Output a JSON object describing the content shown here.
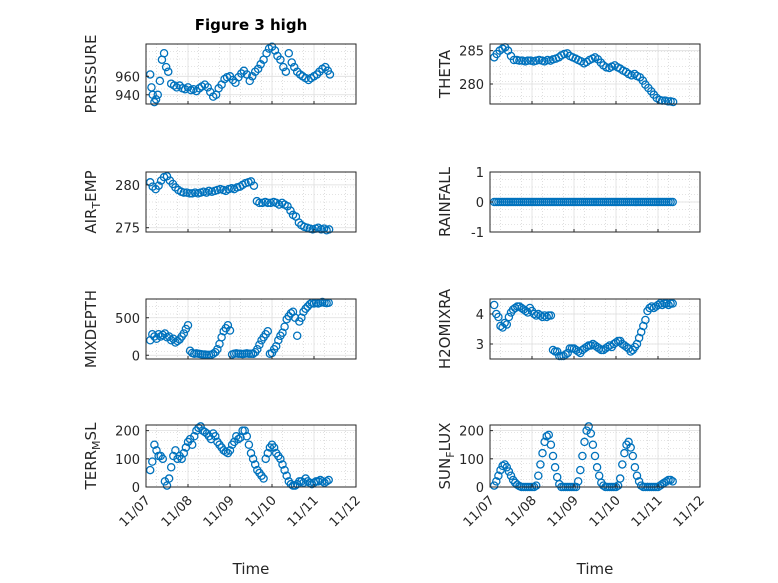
{
  "figure": {
    "title": "Figure 3 high",
    "xlabel": "Time",
    "xticks": [
      "11/07",
      "11/08",
      "11/09",
      "11/10",
      "11/11",
      "11/12"
    ],
    "marker_color": "#0072BD"
  },
  "chart_data": [
    {
      "type": "scatter",
      "ylabel": "PRESSURE",
      "ylabel_sub": "",
      "ylim": [
        930,
        995
      ],
      "yticks": [
        940,
        960
      ],
      "xlim": [
        0,
        5
      ],
      "x": [
        0.1,
        0.13,
        0.16,
        0.2,
        0.24,
        0.28,
        0.33,
        0.38,
        0.43,
        0.48,
        0.53,
        0.6,
        0.67,
        0.73,
        0.8,
        0.87,
        0.93,
        1.0,
        1.07,
        1.13,
        1.2,
        1.27,
        1.33,
        1.4,
        1.47,
        1.53,
        1.6,
        1.67,
        1.73,
        1.8,
        1.87,
        1.93,
        2.0,
        2.07,
        2.13,
        2.2,
        2.27,
        2.33,
        2.4,
        2.47,
        2.53,
        2.6,
        2.67,
        2.73,
        2.8,
        2.87,
        2.93,
        3.0,
        3.07,
        3.13,
        3.2,
        3.27,
        3.33,
        3.4,
        3.47,
        3.53,
        3.6,
        3.67,
        3.73,
        3.8,
        3.87,
        3.93,
        4.0,
        4.07,
        4.13,
        4.2,
        4.27,
        4.33,
        4.38
      ],
      "y": [
        962,
        948,
        940,
        932,
        935,
        940,
        955,
        978,
        985,
        970,
        965,
        952,
        950,
        948,
        950,
        947,
        946,
        948,
        945,
        946,
        944,
        947,
        949,
        951,
        948,
        943,
        938,
        940,
        947,
        951,
        957,
        959,
        960,
        956,
        953,
        959,
        963,
        966,
        962,
        955,
        960,
        965,
        968,
        973,
        978,
        985,
        990,
        992,
        988,
        982,
        978,
        970,
        965,
        985,
        975,
        970,
        965,
        962,
        960,
        958,
        956,
        958,
        960,
        962,
        965,
        968,
        970,
        966,
        962
      ]
    },
    {
      "type": "scatter",
      "ylabel": "THETA",
      "ylabel_sub": "",
      "ylim": [
        277,
        286
      ],
      "yticks": [
        280,
        285
      ],
      "xlim": [
        0,
        5
      ],
      "x": [
        0.1,
        0.16,
        0.23,
        0.3,
        0.36,
        0.43,
        0.5,
        0.57,
        0.64,
        0.7,
        0.77,
        0.84,
        0.9,
        0.97,
        1.04,
        1.1,
        1.17,
        1.24,
        1.3,
        1.37,
        1.44,
        1.5,
        1.57,
        1.64,
        1.7,
        1.77,
        1.84,
        1.9,
        1.97,
        2.04,
        2.1,
        2.17,
        2.24,
        2.3,
        2.37,
        2.44,
        2.5,
        2.57,
        2.64,
        2.7,
        2.77,
        2.84,
        2.9,
        2.97,
        3.04,
        3.1,
        3.17,
        3.24,
        3.3,
        3.37,
        3.44,
        3.5,
        3.57,
        3.64,
        3.7,
        3.77,
        3.84,
        3.9,
        3.97,
        4.04,
        4.1,
        4.17,
        4.24,
        4.3,
        4.36
      ],
      "y": [
        284.0,
        284.5,
        285.0,
        285.3,
        285.5,
        285.0,
        284.2,
        283.6,
        283.6,
        283.5,
        283.5,
        283.4,
        283.5,
        283.5,
        283.4,
        283.5,
        283.6,
        283.5,
        283.4,
        283.6,
        283.5,
        283.7,
        283.8,
        284.0,
        284.3,
        284.5,
        284.6,
        284.2,
        284.0,
        283.8,
        283.6,
        283.4,
        283.1,
        283.3,
        283.6,
        283.8,
        284.0,
        283.7,
        283.2,
        282.8,
        282.5,
        282.4,
        282.6,
        282.8,
        282.5,
        282.3,
        282.0,
        281.8,
        281.5,
        281.3,
        281.5,
        281.2,
        281.0,
        280.5,
        279.9,
        279.4,
        278.9,
        278.4,
        277.9,
        277.6,
        277.5,
        277.5,
        277.4,
        277.4,
        277.3
      ]
    },
    {
      "type": "scatter",
      "ylabel": "AIR",
      "ylabel_sub": "T",
      "ylabel_tail": "EMP",
      "ylim": [
        274.5,
        281.5
      ],
      "yticks": [
        275,
        280
      ],
      "xlim": [
        0,
        5
      ],
      "x": [
        0.1,
        0.16,
        0.23,
        0.3,
        0.36,
        0.43,
        0.5,
        0.57,
        0.64,
        0.7,
        0.77,
        0.84,
        0.9,
        0.97,
        1.04,
        1.1,
        1.17,
        1.24,
        1.3,
        1.37,
        1.44,
        1.5,
        1.57,
        1.64,
        1.7,
        1.77,
        1.84,
        1.9,
        1.97,
        2.04,
        2.1,
        2.17,
        2.24,
        2.3,
        2.37,
        2.44,
        2.5,
        2.57,
        2.64,
        2.7,
        2.77,
        2.84,
        2.9,
        2.97,
        3.04,
        3.1,
        3.17,
        3.24,
        3.3,
        3.37,
        3.44,
        3.5,
        3.57,
        3.64,
        3.7,
        3.77,
        3.84,
        3.9,
        3.97,
        4.04,
        4.1,
        4.17,
        4.24,
        4.3,
        4.36
      ],
      "y": [
        280.3,
        279.8,
        279.5,
        279.9,
        280.5,
        280.9,
        281.0,
        280.5,
        280.1,
        279.7,
        279.4,
        279.2,
        279.1,
        279.1,
        279.0,
        279.0,
        279.1,
        279.0,
        279.1,
        279.2,
        279.1,
        279.3,
        279.2,
        279.3,
        279.4,
        279.5,
        279.4,
        279.3,
        279.5,
        279.6,
        279.5,
        279.7,
        279.8,
        280.0,
        280.2,
        280.3,
        280.4,
        279.9,
        278.1,
        277.9,
        277.9,
        278.0,
        277.9,
        277.9,
        278.0,
        277.9,
        277.7,
        277.9,
        277.7,
        277.5,
        277.0,
        276.5,
        276.3,
        275.6,
        275.3,
        275.1,
        275.0,
        274.9,
        274.8,
        274.9,
        275.0,
        274.8,
        274.9,
        274.7,
        274.8
      ]
    },
    {
      "type": "scatter",
      "ylabel": "RAINFALL",
      "ylabel_sub": "",
      "ylim": [
        -1,
        1
      ],
      "yticks": [
        -1,
        0,
        1
      ],
      "xlim": [
        0,
        5
      ],
      "x": [
        0.1,
        0.15,
        0.2,
        0.25,
        0.3,
        0.35,
        0.4,
        0.45,
        0.5,
        0.55,
        0.6,
        0.65,
        0.7,
        0.75,
        0.8,
        0.85,
        0.9,
        0.95,
        1.0,
        1.05,
        1.1,
        1.15,
        1.2,
        1.25,
        1.3,
        1.35,
        1.4,
        1.45,
        1.5,
        1.55,
        1.6,
        1.65,
        1.7,
        1.75,
        1.8,
        1.85,
        1.9,
        1.95,
        2.0,
        2.05,
        2.1,
        2.15,
        2.2,
        2.25,
        2.3,
        2.35,
        2.4,
        2.45,
        2.5,
        2.55,
        2.6,
        2.65,
        2.7,
        2.75,
        2.8,
        2.85,
        2.9,
        2.95,
        3.0,
        3.05,
        3.1,
        3.15,
        3.2,
        3.25,
        3.3,
        3.35,
        3.4,
        3.45,
        3.5,
        3.55,
        3.6,
        3.65,
        3.7,
        3.75,
        3.8,
        3.85,
        3.9,
        3.95,
        4.0,
        4.05,
        4.1,
        4.15,
        4.2,
        4.25,
        4.3,
        4.35
      ],
      "y": [
        0,
        0,
        0,
        0,
        0,
        0,
        0,
        0,
        0,
        0,
        0,
        0,
        0,
        0,
        0,
        0,
        0,
        0,
        0,
        0,
        0,
        0,
        0,
        0,
        0,
        0,
        0,
        0,
        0,
        0,
        0,
        0,
        0,
        0,
        0,
        0,
        0,
        0,
        0,
        0,
        0,
        0,
        0,
        0,
        0,
        0,
        0,
        0,
        0,
        0,
        0,
        0,
        0,
        0,
        0,
        0,
        0,
        0,
        0,
        0,
        0,
        0,
        0,
        0,
        0,
        0,
        0,
        0,
        0,
        0,
        0,
        0,
        0,
        0,
        0,
        0,
        0,
        0,
        0,
        0,
        0,
        0,
        0,
        0,
        0,
        0
      ]
    },
    {
      "type": "scatter",
      "ylabel": "MIXDEPTH",
      "ylabel_sub": "",
      "ylim": [
        -50,
        750
      ],
      "yticks": [
        0,
        500
      ],
      "xlim": [
        0,
        5
      ],
      "x": [
        0.1,
        0.15,
        0.2,
        0.25,
        0.3,
        0.35,
        0.4,
        0.45,
        0.5,
        0.55,
        0.6,
        0.65,
        0.7,
        0.75,
        0.8,
        0.85,
        0.9,
        0.95,
        1.0,
        1.05,
        1.1,
        1.15,
        1.2,
        1.25,
        1.3,
        1.35,
        1.4,
        1.45,
        1.5,
        1.55,
        1.6,
        1.65,
        1.7,
        1.75,
        1.8,
        1.85,
        1.9,
        1.95,
        2.0,
        2.05,
        2.1,
        2.15,
        2.2,
        2.25,
        2.3,
        2.35,
        2.4,
        2.45,
        2.5,
        2.55,
        2.6,
        2.65,
        2.7,
        2.75,
        2.8,
        2.85,
        2.9,
        2.95,
        3.0,
        3.05,
        3.1,
        3.15,
        3.2,
        3.25,
        3.3,
        3.35,
        3.4,
        3.45,
        3.5,
        3.55,
        3.6,
        3.65,
        3.7,
        3.75,
        3.8,
        3.85,
        3.9,
        3.95,
        4.0,
        4.05,
        4.1,
        4.15,
        4.2,
        4.25,
        4.3,
        4.35
      ],
      "y": [
        200,
        280,
        250,
        220,
        280,
        250,
        270,
        290,
        240,
        250,
        200,
        220,
        170,
        190,
        210,
        250,
        290,
        350,
        400,
        60,
        30,
        20,
        25,
        20,
        15,
        10,
        10,
        5,
        5,
        5,
        20,
        40,
        80,
        150,
        240,
        320,
        360,
        400,
        330,
        10,
        20,
        25,
        20,
        20,
        15,
        20,
        25,
        20,
        20,
        20,
        40,
        80,
        140,
        200,
        240,
        280,
        320,
        20,
        30,
        80,
        120,
        200,
        260,
        300,
        380,
        480,
        520,
        560,
        580,
        500,
        260,
        450,
        500,
        580,
        620,
        650,
        680,
        700,
        690,
        700,
        690,
        700,
        710,
        700,
        695,
        700
      ]
    },
    {
      "type": "scatter",
      "ylabel": "H2OMIXRA",
      "ylabel_sub": "",
      "ylim": [
        2.5,
        4.5
      ],
      "yticks": [
        3,
        4
      ],
      "xlim": [
        0,
        5
      ],
      "x": [
        0.1,
        0.15,
        0.2,
        0.25,
        0.3,
        0.35,
        0.4,
        0.45,
        0.5,
        0.55,
        0.6,
        0.65,
        0.7,
        0.75,
        0.8,
        0.85,
        0.9,
        0.95,
        1.0,
        1.05,
        1.1,
        1.15,
        1.2,
        1.25,
        1.3,
        1.35,
        1.4,
        1.45,
        1.5,
        1.55,
        1.6,
        1.65,
        1.7,
        1.75,
        1.8,
        1.85,
        1.9,
        1.95,
        2.0,
        2.05,
        2.1,
        2.15,
        2.2,
        2.25,
        2.3,
        2.35,
        2.4,
        2.45,
        2.5,
        2.55,
        2.6,
        2.65,
        2.7,
        2.75,
        2.8,
        2.85,
        2.9,
        2.95,
        3.0,
        3.05,
        3.1,
        3.15,
        3.2,
        3.25,
        3.3,
        3.35,
        3.4,
        3.45,
        3.5,
        3.55,
        3.6,
        3.65,
        3.7,
        3.75,
        3.8,
        3.85,
        3.9,
        3.95,
        4.0,
        4.05,
        4.1,
        4.15,
        4.2,
        4.25,
        4.3,
        4.35
      ],
      "y": [
        4.3,
        4.0,
        3.9,
        3.6,
        3.55,
        3.7,
        3.65,
        3.9,
        4.05,
        4.15,
        4.2,
        4.25,
        4.25,
        4.2,
        4.15,
        4.1,
        4.05,
        4.2,
        4.1,
        4.0,
        3.95,
        4.0,
        3.95,
        3.9,
        3.95,
        3.9,
        3.95,
        3.95,
        2.8,
        2.75,
        2.75,
        2.6,
        2.6,
        2.6,
        2.65,
        2.7,
        2.85,
        2.85,
        2.85,
        2.8,
        2.75,
        2.7,
        2.8,
        2.85,
        2.9,
        2.95,
        2.95,
        3.0,
        2.95,
        2.9,
        2.85,
        2.8,
        2.8,
        2.85,
        2.9,
        2.95,
        2.9,
        3.0,
        3.05,
        3.1,
        3.1,
        3.0,
        2.95,
        2.9,
        2.85,
        2.75,
        2.8,
        2.9,
        3.0,
        3.2,
        3.4,
        3.6,
        3.8,
        4.1,
        4.2,
        4.25,
        4.2,
        4.25,
        4.3,
        4.35,
        4.3,
        4.35,
        4.35,
        4.3,
        4.35,
        4.35
      ]
    },
    {
      "type": "scatter",
      "ylabel": "TERR",
      "ylabel_sub": "M",
      "ylabel_tail": "SL",
      "ylim": [
        0,
        220
      ],
      "yticks": [
        0,
        100,
        200
      ],
      "xlim": [
        0,
        5
      ],
      "x": [
        0.1,
        0.15,
        0.2,
        0.25,
        0.3,
        0.35,
        0.4,
        0.45,
        0.5,
        0.55,
        0.6,
        0.65,
        0.7,
        0.75,
        0.8,
        0.85,
        0.9,
        0.95,
        1.0,
        1.05,
        1.1,
        1.15,
        1.2,
        1.25,
        1.3,
        1.35,
        1.4,
        1.45,
        1.5,
        1.55,
        1.6,
        1.65,
        1.7,
        1.75,
        1.8,
        1.85,
        1.9,
        1.95,
        2.0,
        2.05,
        2.1,
        2.15,
        2.2,
        2.25,
        2.3,
        2.35,
        2.4,
        2.45,
        2.5,
        2.55,
        2.6,
        2.65,
        2.7,
        2.75,
        2.8,
        2.85,
        2.9,
        2.95,
        3.0,
        3.05,
        3.1,
        3.15,
        3.2,
        3.25,
        3.3,
        3.35,
        3.4,
        3.45,
        3.5,
        3.55,
        3.6,
        3.65,
        3.7,
        3.75,
        3.8,
        3.85,
        3.9,
        3.95,
        4.0,
        4.05,
        4.1,
        4.15,
        4.2,
        4.25,
        4.3,
        4.35
      ],
      "y": [
        60,
        90,
        150,
        130,
        110,
        110,
        100,
        20,
        5,
        30,
        70,
        110,
        130,
        100,
        110,
        100,
        120,
        140,
        160,
        170,
        150,
        180,
        200,
        210,
        215,
        200,
        195,
        190,
        180,
        170,
        190,
        180,
        160,
        150,
        140,
        130,
        125,
        120,
        130,
        150,
        160,
        180,
        170,
        175,
        200,
        200,
        180,
        150,
        120,
        100,
        80,
        60,
        50,
        40,
        30,
        100,
        120,
        140,
        150,
        140,
        120,
        110,
        100,
        80,
        60,
        40,
        20,
        10,
        5,
        5,
        10,
        20,
        20,
        15,
        30,
        20,
        15,
        10,
        15,
        20,
        20,
        25,
        20,
        15,
        20,
        25
      ]
    },
    {
      "type": "scatter",
      "ylabel": "SUN",
      "ylabel_sub": "F",
      "ylabel_tail": "LUX",
      "ylim": [
        0,
        220
      ],
      "yticks": [
        0,
        100,
        200
      ],
      "xlim": [
        0,
        5
      ],
      "x": [
        0.1,
        0.15,
        0.2,
        0.25,
        0.3,
        0.35,
        0.4,
        0.45,
        0.5,
        0.55,
        0.6,
        0.65,
        0.7,
        0.75,
        0.8,
        0.85,
        0.9,
        0.95,
        1.0,
        1.05,
        1.1,
        1.15,
        1.2,
        1.25,
        1.3,
        1.35,
        1.4,
        1.45,
        1.5,
        1.55,
        1.6,
        1.65,
        1.7,
        1.75,
        1.8,
        1.85,
        1.9,
        1.95,
        2.0,
        2.05,
        2.1,
        2.15,
        2.2,
        2.25,
        2.3,
        2.35,
        2.4,
        2.45,
        2.5,
        2.55,
        2.6,
        2.65,
        2.7,
        2.75,
        2.8,
        2.85,
        2.9,
        2.95,
        3.0,
        3.05,
        3.1,
        3.15,
        3.2,
        3.25,
        3.3,
        3.35,
        3.4,
        3.45,
        3.5,
        3.55,
        3.6,
        3.65,
        3.7,
        3.75,
        3.8,
        3.85,
        3.9,
        3.95,
        4.0,
        4.05,
        4.1,
        4.15,
        4.2,
        4.25,
        4.3,
        4.35
      ],
      "y": [
        5,
        20,
        40,
        60,
        75,
        80,
        70,
        55,
        40,
        25,
        15,
        8,
        3,
        0,
        0,
        0,
        0,
        0,
        0,
        0,
        5,
        40,
        80,
        120,
        160,
        180,
        185,
        150,
        110,
        70,
        35,
        10,
        0,
        0,
        0,
        0,
        0,
        0,
        0,
        0,
        20,
        60,
        110,
        160,
        200,
        215,
        190,
        150,
        110,
        70,
        40,
        15,
        5,
        0,
        0,
        0,
        0,
        0,
        0,
        5,
        30,
        80,
        120,
        150,
        160,
        140,
        110,
        70,
        40,
        20,
        5,
        0,
        0,
        0,
        0,
        0,
        0,
        0,
        0,
        5,
        10,
        15,
        20,
        25,
        25,
        20
      ]
    }
  ]
}
